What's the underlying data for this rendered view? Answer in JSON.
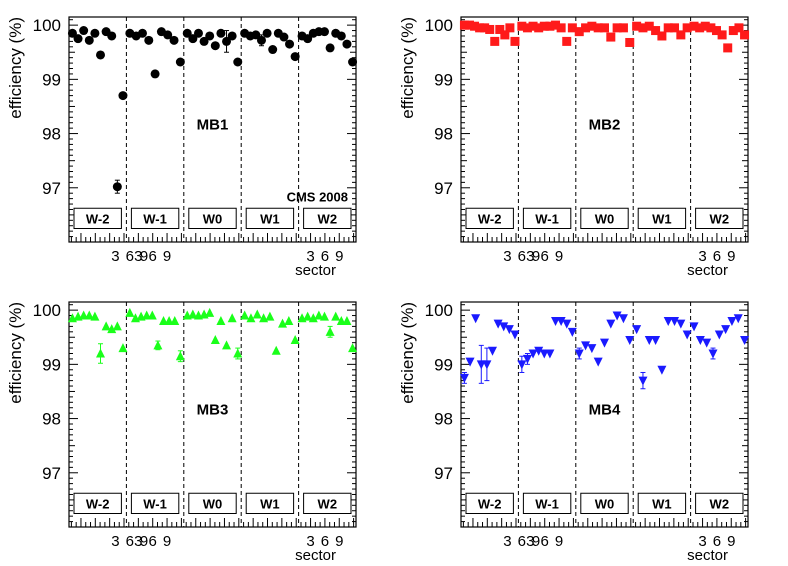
{
  "chart_data": [
    {
      "type": "scatter",
      "title": "MB1",
      "marker": "circle",
      "color": "#000000",
      "ylabel": "efficiency (%)",
      "xlabel": "sector",
      "ylim": [
        96.0,
        100.15
      ],
      "yticks": [
        97,
        98,
        99,
        100
      ],
      "sector_tick_labels": [
        "3",
        "6",
        "9"
      ],
      "wheels": [
        "W-2",
        "W-1",
        "W0",
        "W1",
        "W2"
      ],
      "annotation": "CMS 2008",
      "values": [
        [
          99.85,
          99.75,
          99.9,
          99.72,
          99.85,
          99.45,
          99.88,
          99.8,
          97.02,
          98.7
        ],
        [
          99.85,
          99.8,
          99.85,
          99.72,
          99.1,
          99.88,
          99.82,
          99.72,
          99.32
        ],
        [
          99.85,
          99.75,
          99.85,
          99.7,
          99.8,
          99.62,
          99.85,
          99.7,
          99.8,
          99.32
        ],
        [
          99.85,
          99.8,
          99.82,
          99.72,
          99.85,
          99.55,
          99.85,
          99.78,
          99.65,
          99.42
        ],
        [
          99.8,
          99.75,
          99.85,
          99.88,
          99.88,
          99.58,
          99.85,
          99.8,
          99.65,
          99.32
        ]
      ],
      "errors": [
        [
          0,
          0,
          0,
          0,
          0,
          0,
          0,
          0,
          0.12,
          0.05
        ],
        [
          0,
          0,
          0,
          0,
          0.05,
          0,
          0,
          0,
          0
        ],
        [
          0,
          0,
          0,
          0,
          0,
          0,
          0,
          0.2,
          0,
          0
        ],
        [
          0,
          0,
          0,
          0.1,
          0,
          0,
          0,
          0,
          0,
          0
        ],
        [
          0,
          0,
          0,
          0,
          0,
          0,
          0,
          0,
          0,
          0
        ]
      ]
    },
    {
      "type": "scatter",
      "title": "MB2",
      "marker": "square",
      "color": "#ff1a1a",
      "ylabel": "efficiency (%)",
      "xlabel": "sector",
      "ylim": [
        96.0,
        100.15
      ],
      "yticks": [
        97,
        98,
        99,
        100
      ],
      "sector_tick_labels": [
        "3",
        "6",
        "9"
      ],
      "wheels": [
        "W-2",
        "W-1",
        "W0",
        "W1",
        "W2"
      ],
      "annotation": "",
      "values": [
        [
          100.0,
          100.0,
          99.98,
          99.95,
          99.95,
          99.92,
          99.7,
          99.92,
          99.82,
          99.95,
          99.7
        ],
        [
          99.98,
          99.95,
          99.98,
          99.95,
          99.98,
          99.98,
          100.0,
          99.95,
          99.7,
          99.95
        ],
        [
          99.88,
          99.95,
          99.98,
          99.95,
          99.95,
          99.78,
          99.95,
          99.95,
          99.68
        ],
        [
          99.98,
          99.95,
          99.98,
          99.9,
          99.8,
          99.95,
          99.95,
          99.82,
          99.95
        ],
        [
          99.98,
          99.95,
          99.98,
          99.95,
          99.9,
          99.82,
          99.58,
          99.9,
          99.95,
          99.82
        ]
      ],
      "errors": [
        [
          0,
          0,
          0,
          0,
          0,
          0,
          0,
          0,
          0,
          0,
          0
        ],
        [
          0,
          0,
          0,
          0,
          0,
          0,
          0,
          0,
          0,
          0
        ],
        [
          0,
          0,
          0,
          0,
          0,
          0,
          0,
          0,
          0
        ],
        [
          0,
          0,
          0,
          0,
          0,
          0,
          0,
          0,
          0
        ],
        [
          0,
          0,
          0,
          0,
          0,
          0,
          0,
          0,
          0,
          0
        ]
      ]
    },
    {
      "type": "scatter",
      "title": "MB3",
      "marker": "triangle-up",
      "color": "#1aff1a",
      "ylabel": "efficiency (%)",
      "xlabel": "sector",
      "ylim": [
        96.0,
        100.15
      ],
      "yticks": [
        97,
        98,
        99,
        100
      ],
      "sector_tick_labels": [
        "3",
        "6",
        "9"
      ],
      "wheels": [
        "W-2",
        "W-1",
        "W0",
        "W1",
        "W2"
      ],
      "annotation": "",
      "values": [
        [
          99.85,
          99.88,
          99.9,
          99.9,
          99.88,
          99.2,
          99.7,
          99.65,
          99.7,
          99.3
        ],
        [
          99.95,
          99.85,
          99.88,
          99.9,
          99.9,
          99.35,
          99.8,
          99.8,
          99.8,
          99.15
        ],
        [
          99.9,
          99.92,
          99.9,
          99.92,
          99.95,
          99.45,
          99.8,
          99.35,
          99.85,
          99.2
        ],
        [
          99.9,
          99.85,
          99.92,
          99.85,
          99.88,
          99.25,
          99.75,
          99.8,
          99.45
        ],
        [
          99.85,
          99.88,
          99.85,
          99.9,
          99.88,
          99.6,
          99.88,
          99.8,
          99.8,
          99.3
        ]
      ],
      "errors": [
        [
          0,
          0,
          0,
          0,
          0,
          0.18,
          0,
          0,
          0,
          0
        ],
        [
          0,
          0,
          0,
          0,
          0,
          0.08,
          0,
          0,
          0,
          0.1
        ],
        [
          0,
          0,
          0,
          0,
          0,
          0,
          0,
          0,
          0,
          0.1
        ],
        [
          0,
          0,
          0,
          0,
          0,
          0,
          0,
          0,
          0
        ],
        [
          0,
          0,
          0,
          0,
          0,
          0.1,
          0,
          0,
          0,
          0
        ]
      ]
    },
    {
      "type": "scatter",
      "title": "MB4",
      "marker": "triangle-down",
      "color": "#1a1aff",
      "ylabel": "efficiency (%)",
      "xlabel": "sector",
      "ylim": [
        96.0,
        100.15
      ],
      "yticks": [
        97,
        98,
        99,
        100
      ],
      "sector_tick_labels": [
        "3",
        "6",
        "9"
      ],
      "wheels": [
        "W-2",
        "W-1",
        "W0",
        "W1",
        "W2"
      ],
      "annotation": "",
      "values": [
        [
          98.75,
          99.05,
          99.85,
          99.0,
          99.0,
          99.25,
          99.75,
          99.7,
          99.65,
          99.55
        ],
        [
          99.0,
          99.1,
          99.2,
          99.25,
          99.2,
          99.2,
          99.8,
          99.8,
          99.75,
          99.6
        ],
        [
          99.2,
          99.35,
          99.3,
          99.05,
          99.4,
          99.75,
          99.9,
          99.85,
          99.45
        ],
        [
          99.65,
          98.7,
          99.45,
          99.45,
          98.9,
          99.8,
          99.8,
          99.75,
          99.55
        ],
        [
          99.7,
          99.45,
          99.4,
          99.2,
          99.55,
          99.65,
          99.8,
          99.85,
          99.45
        ]
      ],
      "errors": [
        [
          0.1,
          0,
          0,
          0.35,
          0.3,
          0,
          0,
          0,
          0,
          0
        ],
        [
          0.15,
          0.1,
          0,
          0,
          0,
          0,
          0,
          0,
          0,
          0
        ],
        [
          0.1,
          0,
          0,
          0,
          0,
          0,
          0,
          0,
          0
        ],
        [
          0,
          0.15,
          0,
          0,
          0,
          0,
          0,
          0,
          0
        ],
        [
          0,
          0,
          0,
          0.1,
          0,
          0,
          0,
          0,
          0
        ]
      ]
    }
  ]
}
